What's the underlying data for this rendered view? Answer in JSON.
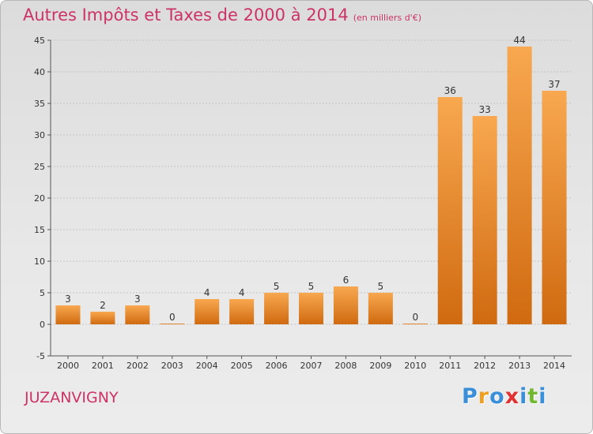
{
  "header": {
    "title": "Autres Impôts et Taxes de 2000 à 2014",
    "unit": "(en milliers d'€)"
  },
  "commune": "JUZANVIGNY",
  "logo": {
    "letters": [
      "P",
      "r",
      "o",
      "x",
      "i",
      "t",
      "i"
    ],
    "colors": [
      "#3a8fd8",
      "#f0a020",
      "#3a8fd8",
      "#e03030",
      "#3a8fd8",
      "#70b830",
      "#3a8fd8"
    ]
  },
  "chart_data": {
    "type": "bar",
    "categories": [
      "2000",
      "2001",
      "2002",
      "2003",
      "2004",
      "2005",
      "2006",
      "2007",
      "2008",
      "2009",
      "2010",
      "2011",
      "2012",
      "2013",
      "2014"
    ],
    "values": [
      3,
      2,
      3,
      0,
      4,
      4,
      5,
      5,
      6,
      5,
      0,
      36,
      33,
      44,
      37
    ],
    "ylim": [
      -5,
      45
    ],
    "yticks": [
      -5,
      0,
      5,
      10,
      15,
      20,
      25,
      30,
      35,
      40,
      45
    ],
    "grid": true,
    "bar_color_light": "#f8a850",
    "bar_color_dark": "#d06a10"
  }
}
